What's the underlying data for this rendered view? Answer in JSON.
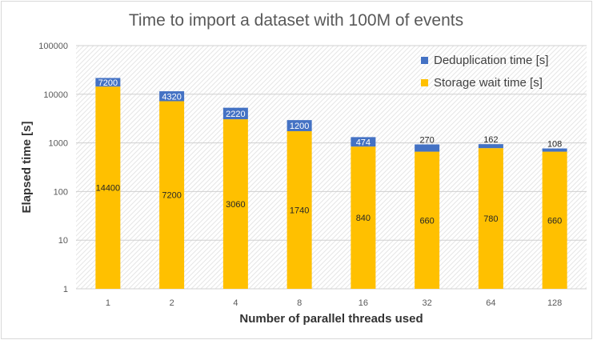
{
  "chart_data": {
    "type": "bar",
    "stacked": true,
    "title": "Time to import a dataset with 100M of events",
    "xlabel": "Number of parallel threads used",
    "ylabel": "Elapsed time [s]",
    "yscale": "log",
    "ylim": [
      1,
      100000
    ],
    "yticks": [
      "1",
      "10",
      "100",
      "1000",
      "10000",
      "100000"
    ],
    "categories": [
      "1",
      "2",
      "4",
      "8",
      "16",
      "32",
      "64",
      "128"
    ],
    "series": [
      {
        "name": "Storage wait time [s]",
        "color": "#ffc000",
        "values": [
          14400,
          7200,
          3060,
          1740,
          840,
          660,
          780,
          660
        ]
      },
      {
        "name": "Deduplication time [s]",
        "color": "#4472c4",
        "values": [
          7200,
          4320,
          2220,
          1200,
          474,
          270,
          162,
          108
        ]
      }
    ],
    "grid": true,
    "legend_position": "top-right"
  }
}
